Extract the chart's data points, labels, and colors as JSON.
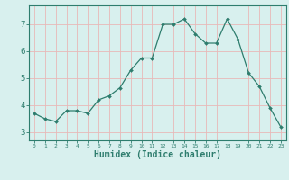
{
  "x": [
    0,
    1,
    2,
    3,
    4,
    5,
    6,
    7,
    8,
    9,
    10,
    11,
    12,
    13,
    14,
    15,
    16,
    17,
    18,
    19,
    20,
    21,
    22,
    23
  ],
  "y": [
    3.7,
    3.5,
    3.4,
    3.8,
    3.8,
    3.7,
    4.2,
    4.35,
    4.65,
    5.3,
    5.75,
    5.75,
    7.0,
    7.0,
    7.2,
    6.65,
    6.3,
    6.3,
    7.2,
    6.45,
    5.2,
    4.7,
    3.9,
    3.2
  ],
  "line_color": "#2e7d6e",
  "marker": "D",
  "marker_size": 2.0,
  "bg_color": "#d8f0ee",
  "grid_color": "#e8b8b8",
  "axis_color": "#2e7d6e",
  "tick_color": "#2e7d6e",
  "xlabel": "Humidex (Indice chaleur)",
  "xlabel_fontsize": 7.0,
  "ytick_labels": [
    "3",
    "4",
    "5",
    "6",
    "7"
  ],
  "ytick_vals": [
    3,
    4,
    5,
    6,
    7
  ],
  "xlim": [
    -0.5,
    23.5
  ],
  "ylim": [
    2.7,
    7.7
  ]
}
